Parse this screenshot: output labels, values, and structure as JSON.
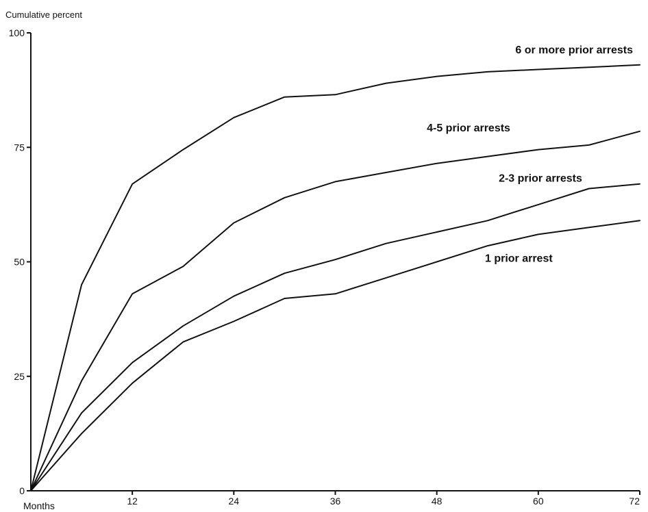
{
  "chart_data": {
    "type": "line",
    "ylabel": "Cumulative percent",
    "xlabel": "Months",
    "xlim": [
      0,
      72
    ],
    "ylim": [
      0,
      100
    ],
    "xticks": [
      12,
      24,
      36,
      48,
      60,
      72
    ],
    "yticks": [
      0,
      25,
      50,
      75,
      100
    ],
    "grid": false,
    "line_color": "#111111",
    "x": [
      0,
      6,
      12,
      18,
      24,
      30,
      36,
      42,
      48,
      54,
      60,
      66,
      72
    ],
    "series": [
      {
        "name": "6 or more prior arrests",
        "values": [
          0,
          45,
          67,
          74.5,
          81.5,
          86,
          86.5,
          89,
          90.5,
          91.5,
          92,
          92.5,
          93
        ]
      },
      {
        "name": "4-5 prior arrests",
        "values": [
          0,
          24,
          43,
          49,
          58.5,
          64,
          67.5,
          69.5,
          71.5,
          73,
          74.5,
          75.5,
          78.5
        ]
      },
      {
        "name": "2-3 prior arrests",
        "values": [
          0,
          17,
          28,
          36,
          42.5,
          47.5,
          50.5,
          54,
          56.5,
          59,
          62.5,
          66,
          67
        ]
      },
      {
        "name": "1 prior arrest",
        "values": [
          0,
          12.5,
          23.5,
          32.5,
          37,
          42,
          43,
          46.5,
          50,
          53.5,
          56,
          57.5,
          59
        ]
      }
    ]
  }
}
